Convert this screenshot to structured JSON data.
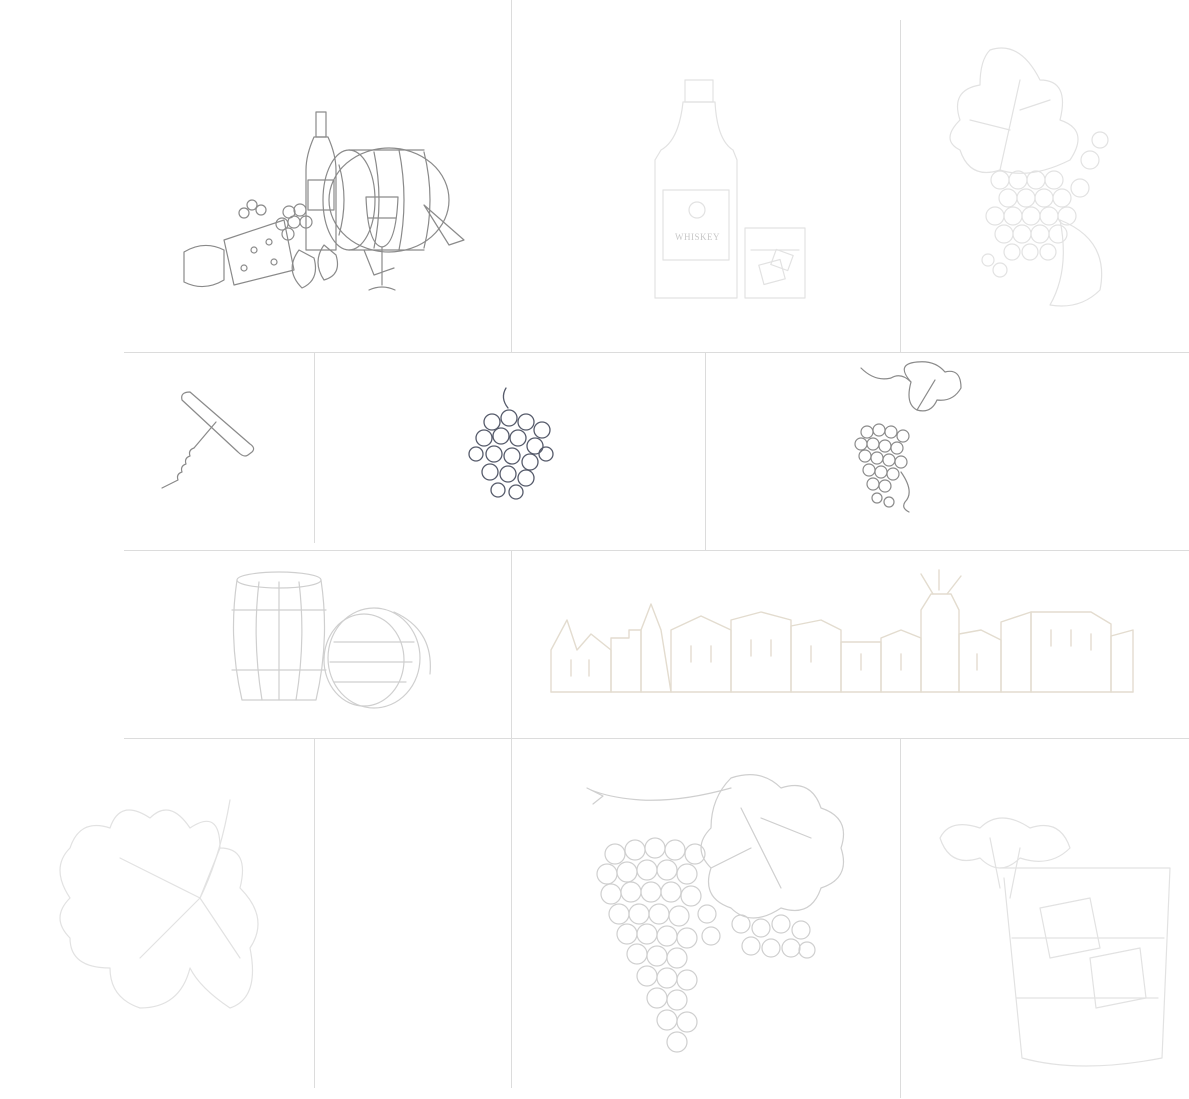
{
  "colors": {
    "background": "#ffffff",
    "grid_line": "#dcdcdc",
    "ink": "#8a8a8a",
    "ink_light": "#cfcfcf",
    "ink_dark": "#555a6a",
    "ink_beige": "#e3dccf"
  },
  "tiles": [
    {
      "name": "wine-barrel-still-life",
      "icon": "wine-barrel-cheese-still-life-illustration"
    },
    {
      "name": "whiskey-bottle",
      "icon": "whiskey-bottle-and-glass-illustration",
      "bottle_label": "WHISKEY"
    },
    {
      "name": "grape-leaf-bunch-faint",
      "icon": "grape-bunch-with-leaf-illustration"
    },
    {
      "name": "corkscrew",
      "icon": "corkscrew-illustration"
    },
    {
      "name": "small-grape-bunch",
      "icon": "grape-bunch-illustration"
    },
    {
      "name": "grape-vine-leaf",
      "icon": "grape-vine-with-leaf-illustration"
    },
    {
      "name": "two-barrels",
      "icon": "two-barrels-illustration"
    },
    {
      "name": "town-skyline",
      "icon": "old-town-skyline-with-windmill-illustration"
    },
    {
      "name": "vine-leaf-faint",
      "icon": "vine-leaf-illustration"
    },
    {
      "name": "empty-tile",
      "icon": ""
    },
    {
      "name": "large-grape-bunch",
      "icon": "large-grape-bunch-illustration"
    },
    {
      "name": "cocktail-glass-mint",
      "icon": "whiskey-glass-with-mint-illustration"
    }
  ]
}
